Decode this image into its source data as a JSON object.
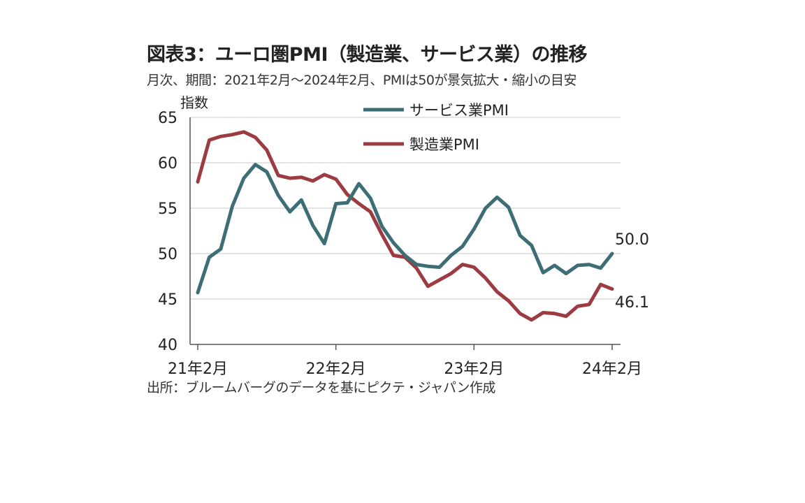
{
  "title": "図表3：ユーロ圏PMI（製造業、サービス業）の推移",
  "subtitle": "月次、期間：2021年2月～2024年2月、PMIは50が景気拡大・縮小の目安",
  "source": "出所：ブルームバーグのデータを基にピクテ・ジャパン作成",
  "chart_data": {
    "type": "line",
    "ylabel": "指数",
    "xlabel": "",
    "ylim": [
      40,
      65
    ],
    "yticks": [
      40,
      45,
      50,
      55,
      60,
      65
    ],
    "grid": true,
    "legend_position": "top",
    "x_tick_labels": [
      "21年2月",
      "22年2月",
      "23年2月",
      "24年2月"
    ],
    "x": [
      "2021-02",
      "2021-03",
      "2021-04",
      "2021-05",
      "2021-06",
      "2021-07",
      "2021-08",
      "2021-09",
      "2021-10",
      "2021-11",
      "2021-12",
      "2022-01",
      "2022-02",
      "2022-03",
      "2022-04",
      "2022-05",
      "2022-06",
      "2022-07",
      "2022-08",
      "2022-09",
      "2022-10",
      "2022-11",
      "2022-12",
      "2023-01",
      "2023-02",
      "2023-03",
      "2023-04",
      "2023-05",
      "2023-06",
      "2023-07",
      "2023-08",
      "2023-09",
      "2023-10",
      "2023-11",
      "2023-12",
      "2024-01",
      "2024-02"
    ],
    "series": [
      {
        "name": "サービス業PMI",
        "color": "#3d6e75",
        "values": [
          45.7,
          49.6,
          50.5,
          55.2,
          58.3,
          59.8,
          59.0,
          56.4,
          54.6,
          55.9,
          53.1,
          51.1,
          55.5,
          55.6,
          57.7,
          56.1,
          53.0,
          51.2,
          49.8,
          48.8,
          48.6,
          48.5,
          49.8,
          50.8,
          52.7,
          55.0,
          56.2,
          55.1,
          52.0,
          50.9,
          47.9,
          48.7,
          47.8,
          48.7,
          48.8,
          48.4,
          50.0
        ],
        "end_label": "50.0"
      },
      {
        "name": "製造業PMI",
        "color": "#9c3b41",
        "values": [
          57.9,
          62.5,
          62.9,
          63.1,
          63.4,
          62.8,
          61.4,
          58.6,
          58.3,
          58.4,
          58.0,
          58.7,
          58.2,
          56.5,
          55.5,
          54.6,
          52.1,
          49.8,
          49.6,
          48.4,
          46.4,
          47.1,
          47.8,
          48.8,
          48.5,
          47.3,
          45.8,
          44.8,
          43.4,
          42.7,
          43.5,
          43.4,
          43.1,
          44.2,
          44.4,
          46.6,
          46.1
        ],
        "end_label": "46.1"
      }
    ]
  }
}
